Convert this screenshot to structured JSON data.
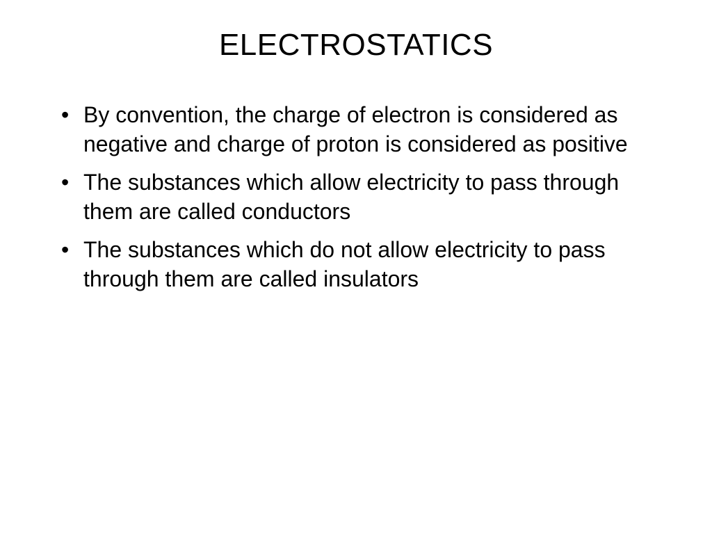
{
  "slide": {
    "title": "ELECTROSTATICS",
    "bullets": [
      "By convention, the charge of electron is considered as negative and charge of proton is considered as positive",
      " The substances which allow electricity to pass through them are called conductors",
      "The substances which do not allow electricity to pass through them are called insulators"
    ],
    "styling": {
      "background_color": "#ffffff",
      "text_color": "#000000",
      "title_fontsize": 44,
      "body_fontsize": 32,
      "font_family": "Arial"
    }
  }
}
